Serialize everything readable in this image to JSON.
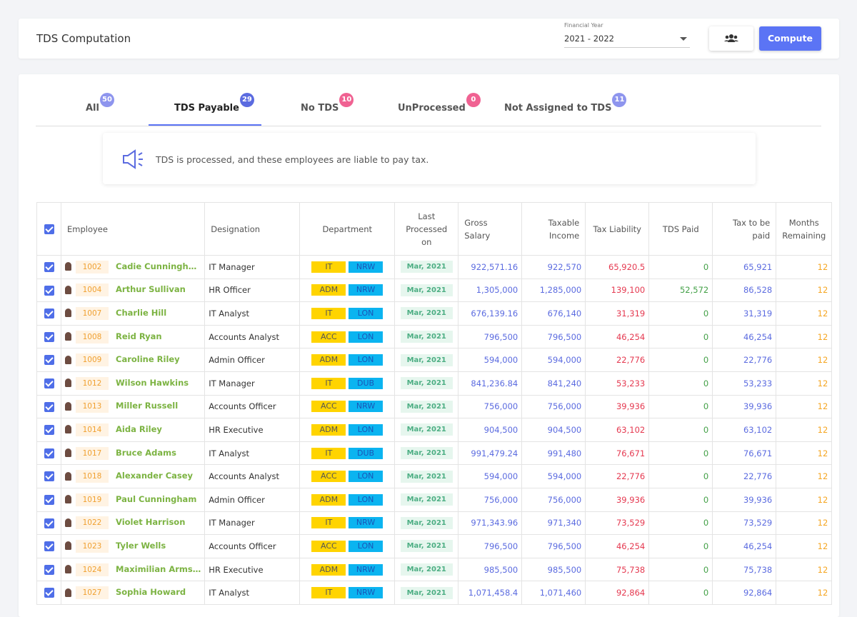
{
  "header": {
    "title": "TDS Computation",
    "year_label": "Financial Year",
    "year_value": "2021 - 2022",
    "compute": "Compute"
  },
  "tabs": [
    {
      "label": "All",
      "count": "50"
    },
    {
      "label": "TDS Payable",
      "count": "29"
    },
    {
      "label": "No TDS",
      "count": "10"
    },
    {
      "label": "UnProcessed",
      "count": "0"
    },
    {
      "label": "Not Assigned to TDS",
      "count": "11"
    }
  ],
  "info": "TDS is processed, and these employees are liable to pay tax.",
  "table": {
    "headers": [
      "Employee",
      "Designation",
      "Department",
      "Last Processed on",
      "Gross Salary",
      "Taxable Income",
      "Tax Liability",
      "TDS Paid",
      "Tax to be paid",
      "Months Remaining"
    ],
    "rows": [
      [
        "1002",
        "Cadie Cunningh…",
        "IT Manager",
        "IT",
        "NRW",
        "Mar, 2021",
        "922,571.16",
        "922,570",
        "65,920.5",
        "0",
        "65,921",
        "12"
      ],
      [
        "1004",
        "Arthur Sullivan",
        "HR Officer",
        "ADM",
        "NRW",
        "Mar, 2021",
        "1,305,000",
        "1,285,000",
        "139,100",
        "52,572",
        "86,528",
        "12"
      ],
      [
        "1007",
        "Charlie Hill",
        "IT Analyst",
        "IT",
        "LON",
        "Mar, 2021",
        "676,139.16",
        "676,140",
        "31,319",
        "0",
        "31,319",
        "12"
      ],
      [
        "1008",
        "Reid Ryan",
        "Accounts Analyst",
        "ACC",
        "LON",
        "Mar, 2021",
        "796,500",
        "796,500",
        "46,254",
        "0",
        "46,254",
        "12"
      ],
      [
        "1009",
        "Caroline Riley",
        "Admin Officer",
        "ADM",
        "LON",
        "Mar, 2021",
        "594,000",
        "594,000",
        "22,776",
        "0",
        "22,776",
        "12"
      ],
      [
        "1012",
        "Wilson Hawkins",
        "IT Manager",
        "IT",
        "DUB",
        "Mar, 2021",
        "841,236.84",
        "841,240",
        "53,233",
        "0",
        "53,233",
        "12"
      ],
      [
        "1013",
        "Miller Russell",
        "Accounts Officer",
        "ACC",
        "NRW",
        "Mar, 2021",
        "756,000",
        "756,000",
        "39,936",
        "0",
        "39,936",
        "12"
      ],
      [
        "1014",
        "Aida Riley",
        "HR Executive",
        "ADM",
        "LON",
        "Mar, 2021",
        "904,500",
        "904,500",
        "63,102",
        "0",
        "63,102",
        "12"
      ],
      [
        "1017",
        "Bruce Adams",
        "IT Analyst",
        "IT",
        "DUB",
        "Mar, 2021",
        "991,479.24",
        "991,480",
        "76,671",
        "0",
        "76,671",
        "12"
      ],
      [
        "1018",
        "Alexander Casey",
        "Accounts Analyst",
        "ACC",
        "LON",
        "Mar, 2021",
        "594,000",
        "594,000",
        "22,776",
        "0",
        "22,776",
        "12"
      ],
      [
        "1019",
        "Paul Cunningham",
        "Admin Officer",
        "ADM",
        "LON",
        "Mar, 2021",
        "756,000",
        "756,000",
        "39,936",
        "0",
        "39,936",
        "12"
      ],
      [
        "1022",
        "Violet Harrison",
        "IT Manager",
        "IT",
        "NRW",
        "Mar, 2021",
        "971,343.96",
        "971,340",
        "73,529",
        "0",
        "73,529",
        "12"
      ],
      [
        "1023",
        "Tyler Wells",
        "Accounts Officer",
        "ACC",
        "LON",
        "Mar, 2021",
        "796,500",
        "796,500",
        "46,254",
        "0",
        "46,254",
        "12"
      ],
      [
        "1024",
        "Maximilian Arms…",
        "HR Executive",
        "ADM",
        "NRW",
        "Mar, 2021",
        "985,500",
        "985,500",
        "75,738",
        "0",
        "75,738",
        "12"
      ],
      [
        "1027",
        "Sophia Howard",
        "IT Analyst",
        "IT",
        "NRW",
        "Mar, 2021",
        "1,071,458.4",
        "1,071,460",
        "92,864",
        "0",
        "92,864",
        "12"
      ]
    ]
  }
}
